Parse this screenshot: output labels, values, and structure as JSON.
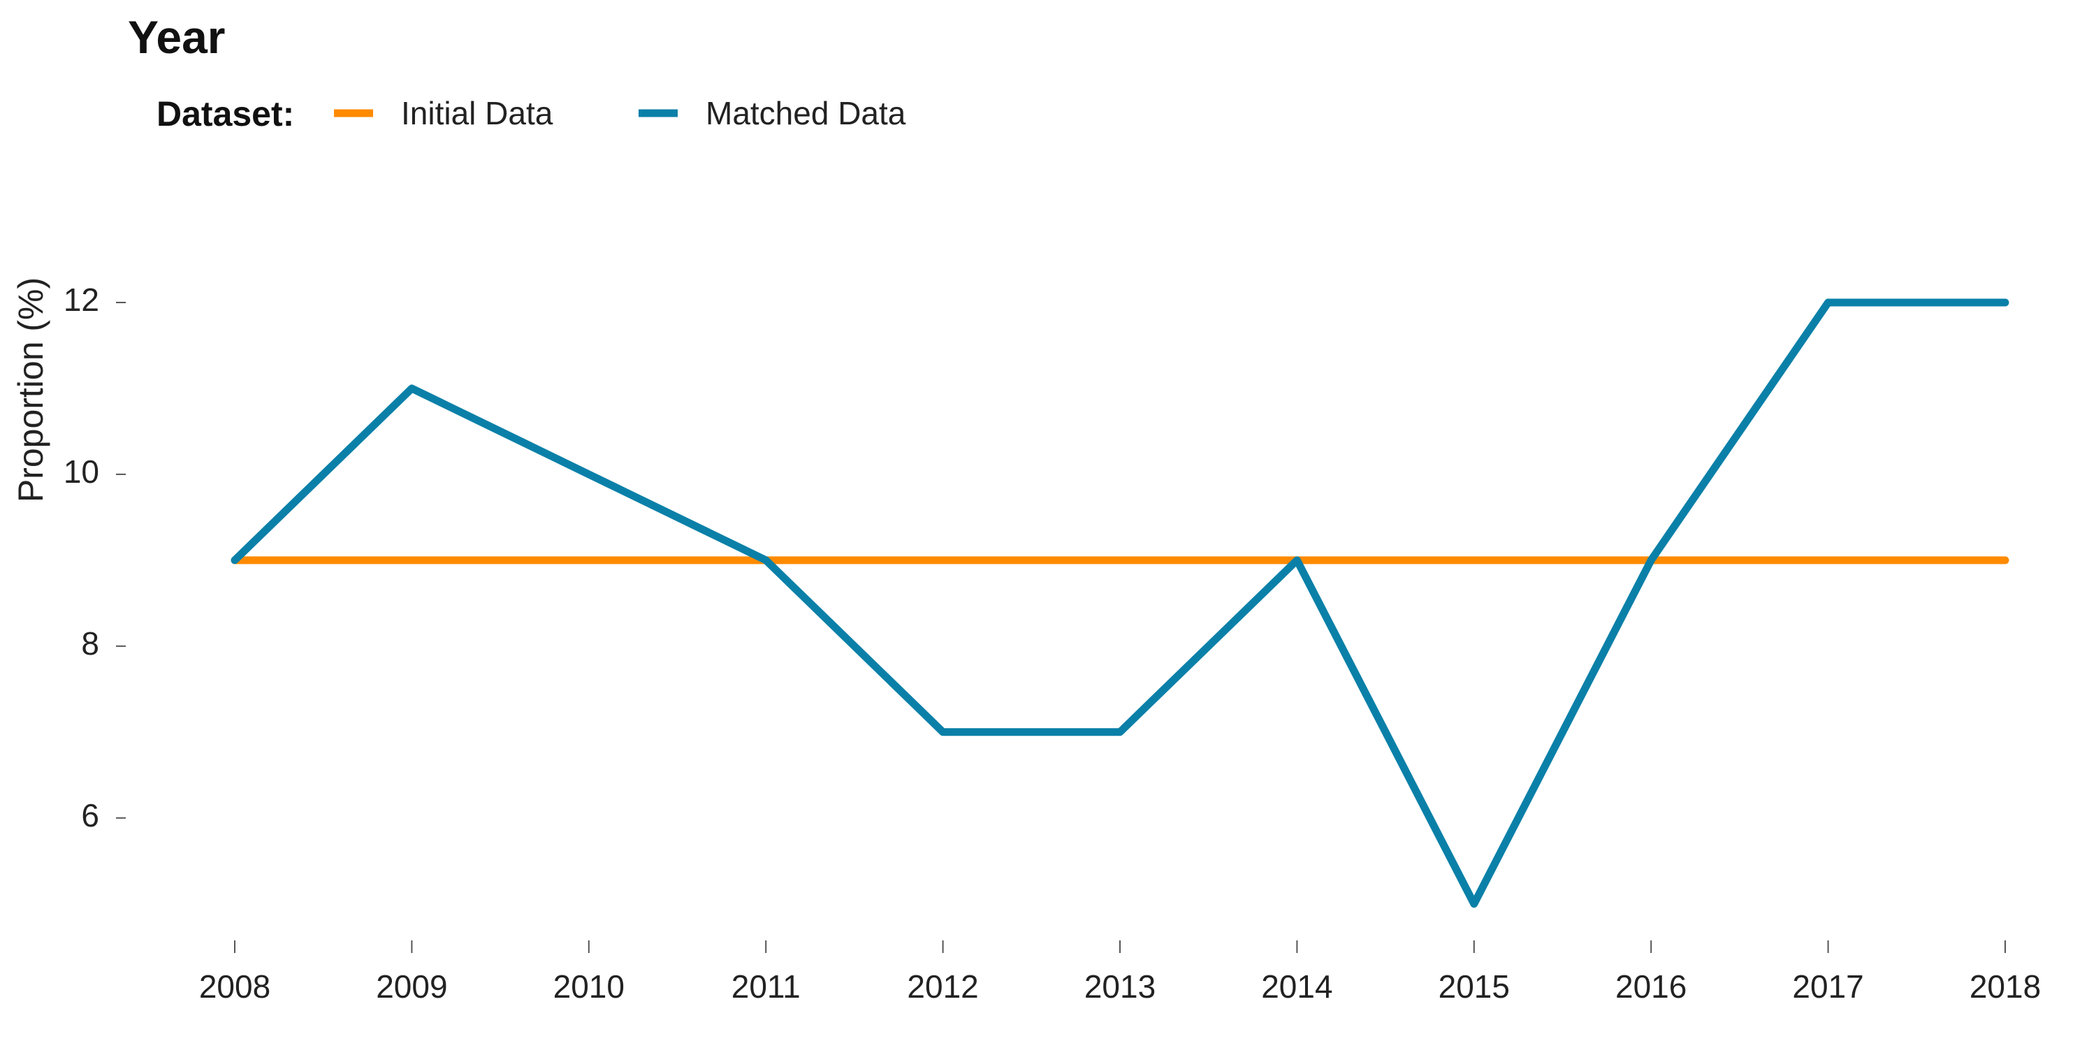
{
  "chart_data": {
    "type": "line",
    "title": "Year",
    "xlabel": "",
    "ylabel": "Proportion (%)",
    "legend": {
      "title": "Dataset:",
      "placement": "top-left",
      "entries": [
        "Initial Data",
        "Matched Data"
      ]
    },
    "x": [
      2008,
      2009,
      2010,
      2011,
      2012,
      2013,
      2014,
      2015,
      2016,
      2017,
      2018
    ],
    "x_ticks": [
      "2008",
      "2009",
      "2010",
      "2011",
      "2012",
      "2013",
      "2014",
      "2015",
      "2016",
      "2017",
      "2018"
    ],
    "y_ticks": [
      "6",
      "8",
      "10",
      "12"
    ],
    "xlim": [
      2008,
      2018
    ],
    "ylim": [
      4.9,
      13.0
    ],
    "grid": false,
    "series": [
      {
        "name": "Initial Data",
        "color": "#FF8A00",
        "values": [
          9,
          9,
          9,
          9,
          9,
          9,
          9,
          9,
          9,
          9,
          9
        ]
      },
      {
        "name": "Matched Data",
        "color": "#0A80A8",
        "values": [
          9,
          11,
          10,
          9,
          7,
          7,
          9,
          5,
          9,
          12,
          12
        ]
      }
    ]
  }
}
